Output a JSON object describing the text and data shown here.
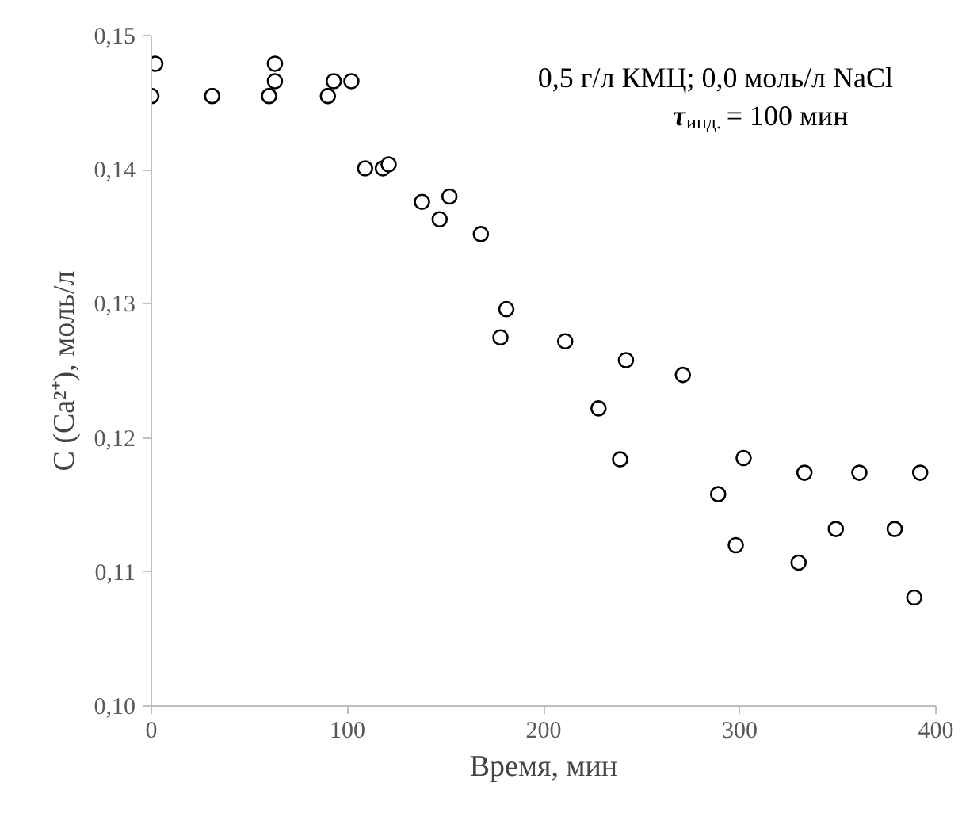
{
  "chart_data": {
    "type": "scatter",
    "xlabel": "Время, мин",
    "ylabel": "C (Ca²⁺), моль/л",
    "annotations": [
      "0,5 г/л КМЦ; 0,0 моль/л NaCl",
      "τ$_{инд.}$ = 100 мин"
    ],
    "x": [
      0,
      2,
      31,
      60,
      63,
      63,
      90,
      93,
      102,
      109,
      118,
      121,
      138,
      147,
      152,
      168,
      181,
      178,
      211,
      242,
      271,
      228,
      239,
      302,
      289,
      298,
      333,
      361,
      392,
      349,
      379,
      330,
      389
    ],
    "series": [
      {
        "color": "#000000",
        "values": [
          0.1455,
          0.1479,
          0.1455,
          0.1455,
          0.1466,
          0.1479,
          0.1455,
          0.1466,
          0.1466,
          0.1401,
          0.1401,
          0.1404,
          0.1376,
          0.1363,
          0.138,
          0.1352,
          0.1296,
          0.1275,
          0.1272,
          0.1258,
          0.1247,
          0.1222,
          0.1184,
          0.1185,
          0.1158,
          0.112,
          0.1174,
          0.1174,
          0.1174,
          0.1132,
          0.1132,
          0.1107,
          0.1081
        ]
      }
    ],
    "xlim": [
      0,
      400
    ],
    "ylim": [
      0.1,
      0.15
    ],
    "xticks": [
      0,
      100,
      200,
      300,
      400
    ],
    "yticks": [
      {
        "value": 0.1,
        "label": "0,10"
      },
      {
        "value": 0.11,
        "label": "0,11"
      },
      {
        "value": 0.12,
        "label": "0,12"
      },
      {
        "value": 0.13,
        "label": "0,13"
      },
      {
        "value": 0.14,
        "label": "0,14"
      },
      {
        "value": 0.15,
        "label": "0,15"
      }
    ],
    "marker": "circle",
    "grid": false
  }
}
